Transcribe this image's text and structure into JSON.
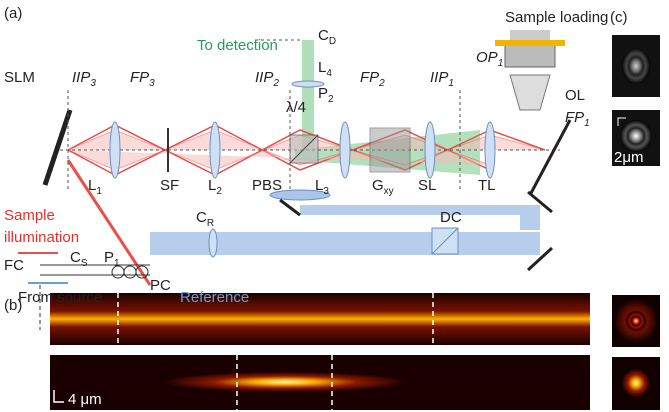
{
  "labels": [
    {
      "text": "(a)"
    },
    {
      "text": "Sample loading"
    },
    {
      "text": "(c)"
    },
    {
      "text": "To detection"
    },
    {
      "text": "C",
      "sub": "D"
    },
    {
      "text": "L",
      "sub": "4"
    },
    {
      "text": "P",
      "sub": "2"
    },
    {
      "text": "λ/4"
    },
    {
      "text": "SLM"
    },
    {
      "text": "IIP",
      "sub": "3"
    },
    {
      "text": "FP",
      "sub": "3"
    },
    {
      "text": "IIP",
      "sub": "2"
    },
    {
      "text": "FP",
      "sub": "2"
    },
    {
      "text": "IIP",
      "sub": "1"
    },
    {
      "text": "OP",
      "sub": "1"
    },
    {
      "text": "FP",
      "sub": "1"
    },
    {
      "text": "OL"
    },
    {
      "text": "L",
      "sub": "1"
    },
    {
      "text": "SF"
    },
    {
      "text": "L",
      "sub": "2"
    },
    {
      "text": "PBS"
    },
    {
      "text": "L",
      "sub": "3"
    },
    {
      "text": "G",
      "sub": "xy"
    },
    {
      "text": "SL"
    },
    {
      "text": "TL"
    },
    {
      "text": "Sample"
    },
    {
      "text": "illumination"
    },
    {
      "text": "FC"
    },
    {
      "text": "C",
      "sub": "S"
    },
    {
      "text": "P",
      "sub": "1"
    },
    {
      "text": "PC"
    },
    {
      "text": "C",
      "sub": "R"
    },
    {
      "text": "DC"
    },
    {
      "text": "From source"
    },
    {
      "text": "Reference"
    },
    {
      "text": "2μm"
    },
    {
      "text": "(b)"
    },
    {
      "text": "4 μm"
    }
  ]
}
